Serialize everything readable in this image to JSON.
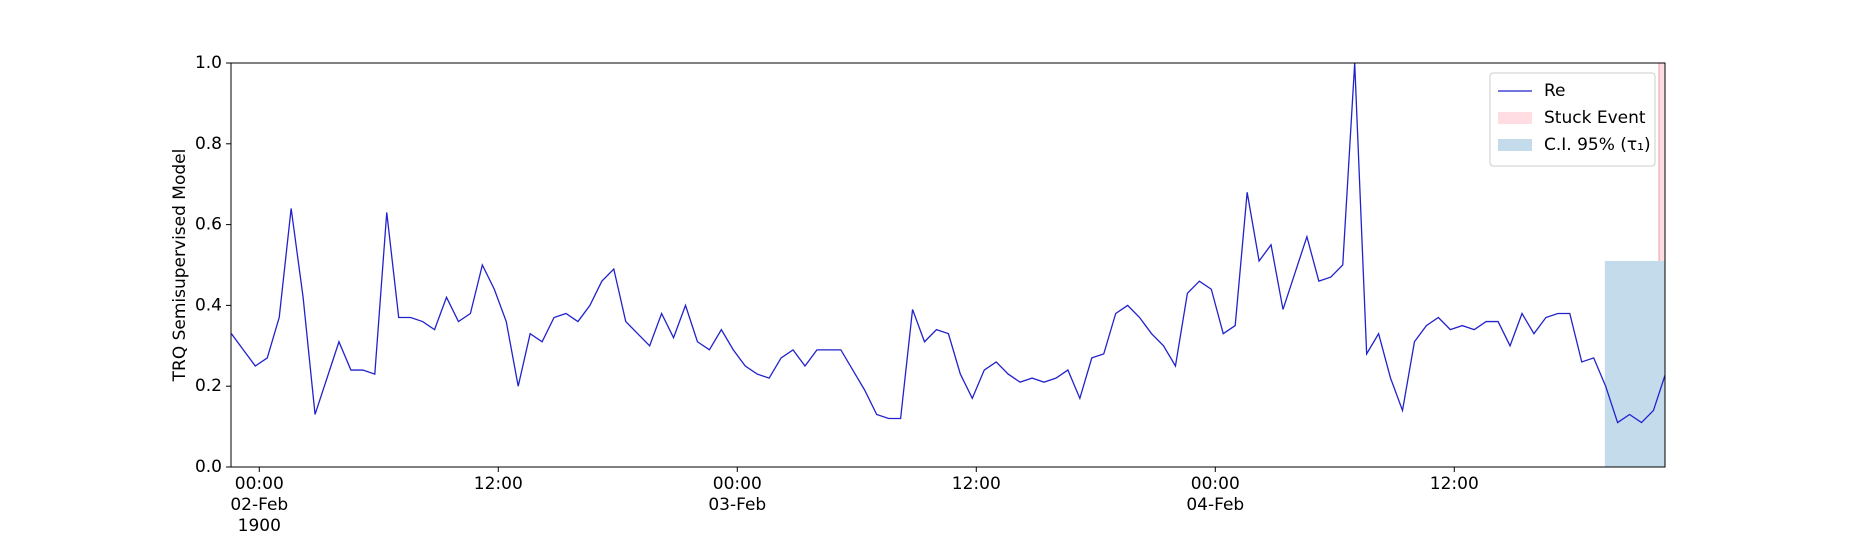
{
  "chart_data": {
    "type": "line",
    "ylabel": "TRQ Semisupervised Model",
    "xlim": [
      -1.42,
      70.58
    ],
    "ylim": [
      0,
      1
    ],
    "xticks": [
      {
        "value": 0,
        "label": "00:00\n02-Feb\n1900"
      },
      {
        "value": 12,
        "label": "12:00"
      },
      {
        "value": 24,
        "label": "00:00\n03-Feb"
      },
      {
        "value": 36,
        "label": "12:00"
      },
      {
        "value": 48,
        "label": "00:00\n04-Feb"
      },
      {
        "value": 60,
        "label": "12:00"
      }
    ],
    "yticks": [
      {
        "value": 0,
        "label": "0.0"
      },
      0.2,
      0.4,
      0.6,
      0.8,
      {
        "value": 1,
        "label": "1.0"
      }
    ],
    "legend": "upper right",
    "x": [
      -1.4,
      -0.8,
      -0.2,
      0.4,
      1.0,
      1.6,
      2.2,
      2.8,
      3.4,
      4.0,
      4.6,
      5.2,
      5.8,
      6.4,
      7.0,
      7.6,
      8.2,
      8.8,
      9.4,
      10.0,
      10.6,
      11.2,
      11.8,
      12.4,
      13.0,
      13.6,
      14.2,
      14.8,
      15.4,
      16.0,
      16.6,
      17.2,
      17.8,
      18.4,
      19.0,
      19.6,
      20.2,
      20.8,
      21.4,
      22.0,
      22.6,
      23.2,
      23.8,
      24.4,
      25.0,
      25.6,
      26.2,
      26.8,
      27.4,
      28.0,
      28.6,
      29.2,
      29.8,
      30.4,
      31.0,
      31.6,
      32.2,
      32.8,
      33.4,
      34.0,
      34.6,
      35.2,
      35.8,
      36.4,
      37.0,
      37.6,
      38.2,
      38.8,
      39.4,
      40.0,
      40.6,
      41.2,
      41.8,
      42.4,
      43.0,
      43.6,
      44.2,
      44.8,
      45.4,
      46.0,
      46.6,
      47.2,
      47.8,
      48.4,
      49.0,
      49.6,
      50.2,
      50.8,
      51.4,
      52.0,
      52.6,
      53.2,
      53.8,
      54.4,
      55.0,
      55.6,
      56.2,
      56.8,
      57.4,
      58.0,
      58.6,
      59.2,
      59.8,
      60.4,
      61.0,
      61.6,
      62.2,
      62.8,
      63.4,
      64.0,
      64.6,
      65.2,
      65.8,
      66.4,
      67.0,
      67.6,
      68.2,
      68.8,
      69.4,
      70.0,
      70.6
    ],
    "series": [
      {
        "name": "Re",
        "color": "#2222cc",
        "values": [
          0.33,
          0.29,
          0.25,
          0.27,
          0.37,
          0.64,
          0.42,
          0.13,
          0.22,
          0.31,
          0.24,
          0.24,
          0.23,
          0.63,
          0.37,
          0.37,
          0.36,
          0.34,
          0.42,
          0.36,
          0.38,
          0.5,
          0.44,
          0.36,
          0.2,
          0.33,
          0.31,
          0.37,
          0.38,
          0.36,
          0.4,
          0.46,
          0.49,
          0.36,
          0.33,
          0.3,
          0.38,
          0.32,
          0.4,
          0.31,
          0.29,
          0.34,
          0.29,
          0.25,
          0.23,
          0.22,
          0.27,
          0.29,
          0.25,
          0.29,
          0.29,
          0.29,
          0.24,
          0.19,
          0.13,
          0.12,
          0.12,
          0.39,
          0.31,
          0.34,
          0.33,
          0.23,
          0.17,
          0.24,
          0.26,
          0.23,
          0.21,
          0.22,
          0.21,
          0.22,
          0.24,
          0.17,
          0.27,
          0.28,
          0.38,
          0.4,
          0.37,
          0.33,
          0.3,
          0.25,
          0.43,
          0.46,
          0.44,
          0.33,
          0.35,
          0.68,
          0.51,
          0.55,
          0.39,
          0.48,
          0.57,
          0.46,
          0.47,
          0.5,
          1.0,
          0.28,
          0.33,
          0.22,
          0.14,
          0.31,
          0.35,
          0.37,
          0.34,
          0.35,
          0.34,
          0.36,
          0.36,
          0.3,
          0.38,
          0.33,
          0.37,
          0.38,
          0.38,
          0.26,
          0.27,
          0.2,
          0.11,
          0.13,
          0.11,
          0.14,
          0.23
        ]
      }
    ],
    "spans": [
      {
        "name": "Stuck Event",
        "color": "#ffdde2",
        "x": [
          70.28,
          70.58
        ]
      },
      {
        "name": "C.I. 95% (τ₁)",
        "color": "#c4dbec",
        "x": [
          67.56,
          70.58
        ],
        "y": [
          0,
          0.51
        ]
      }
    ]
  }
}
